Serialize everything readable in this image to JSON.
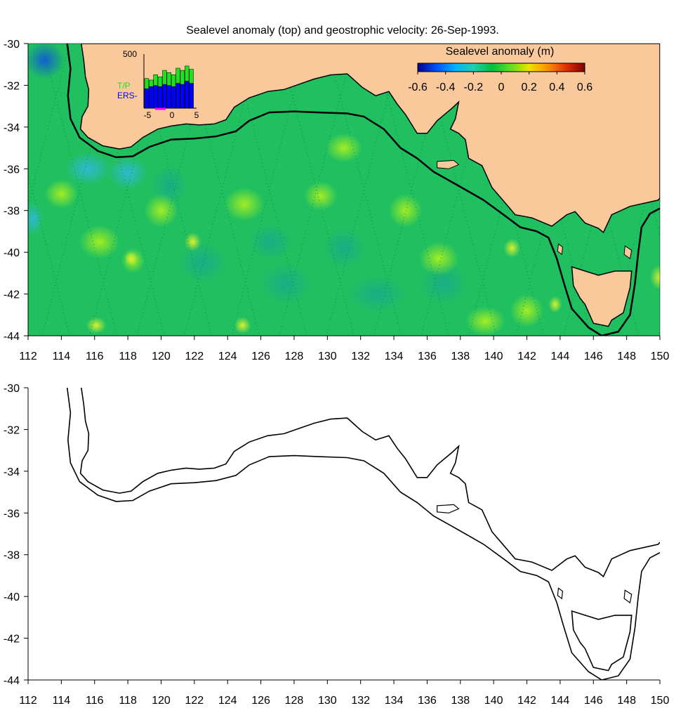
{
  "title": "Sealevel anomaly (top) and geostrophic velocity: 26-Sep-1993.",
  "x_axis": {
    "min": 112,
    "max": 150,
    "ticks": [
      112,
      114,
      116,
      118,
      120,
      122,
      124,
      126,
      128,
      130,
      132,
      134,
      136,
      138,
      140,
      142,
      144,
      146,
      148,
      150
    ]
  },
  "y_axis": {
    "min": -44,
    "max": -30,
    "ticks": [
      -30,
      -32,
      -34,
      -36,
      -38,
      -40,
      -42,
      -44
    ]
  },
  "colorbar": {
    "label": "Sealevel anomaly (m)",
    "ticks": [
      "-0.6",
      "-0.4",
      "-0.2",
      "0",
      "0.2",
      "0.4",
      "0.6"
    ],
    "range": [
      -0.6,
      0.6
    ],
    "colors": [
      "#00008f",
      "#0050ff",
      "#00b0ff",
      "#20d0b0",
      "#00c040",
      "#60e020",
      "#f0e000",
      "#ff9000",
      "#e03000",
      "#800000"
    ]
  },
  "inset": {
    "y_label": "500",
    "x_ticks": [
      "-5",
      "0",
      "5"
    ],
    "series_labels": [
      "T/P",
      "ERS-"
    ],
    "series_colors": [
      "#20e020",
      "#0000ff"
    ],
    "bars": [
      {
        "tp": 0.55,
        "ers": 0.36
      },
      {
        "tp": 0.52,
        "ers": 0.4
      },
      {
        "tp": 0.62,
        "ers": 0.42
      },
      {
        "tp": 0.58,
        "ers": 0.4
      },
      {
        "tp": 0.7,
        "ers": 0.44
      },
      {
        "tp": 0.66,
        "ers": 0.42
      },
      {
        "tp": 0.62,
        "ers": 0.4
      },
      {
        "tp": 0.74,
        "ers": 0.46
      },
      {
        "tp": 0.7,
        "ers": 0.44
      },
      {
        "tp": 0.78,
        "ers": 0.5
      },
      {
        "tp": 0.72,
        "ers": 0.46
      }
    ]
  },
  "colors": {
    "land": "#f9c99b",
    "ocean": "#20c060",
    "coast": "#000000"
  },
  "coast": [
    [
      115.2,
      -30
    ],
    [
      115.35,
      -30.8
    ],
    [
      115.45,
      -31.6
    ],
    [
      115.65,
      -32.2
    ],
    [
      115.6,
      -33.0
    ],
    [
      115.25,
      -33.5
    ],
    [
      115.15,
      -34.1
    ],
    [
      115.6,
      -34.5
    ],
    [
      116.5,
      -34.9
    ],
    [
      117.5,
      -35.05
    ],
    [
      118.2,
      -34.95
    ],
    [
      118.9,
      -34.5
    ],
    [
      119.8,
      -34.1
    ],
    [
      120.6,
      -33.95
    ],
    [
      121.5,
      -33.85
    ],
    [
      122.3,
      -33.9
    ],
    [
      123.2,
      -33.85
    ],
    [
      123.9,
      -33.65
    ],
    [
      124.4,
      -33.05
    ],
    [
      125.3,
      -32.6
    ],
    [
      126.4,
      -32.3
    ],
    [
      127.4,
      -32.2
    ],
    [
      128.3,
      -31.95
    ],
    [
      129.2,
      -31.7
    ],
    [
      130.2,
      -31.5
    ],
    [
      131.2,
      -31.45
    ],
    [
      132.1,
      -32.1
    ],
    [
      132.9,
      -32.5
    ],
    [
      133.7,
      -32.3
    ],
    [
      134.2,
      -32.9
    ],
    [
      134.7,
      -33.4
    ],
    [
      135.4,
      -34.3
    ],
    [
      136.0,
      -34.3
    ],
    [
      136.6,
      -33.7
    ],
    [
      137.5,
      -33.1
    ],
    [
      137.9,
      -32.8
    ],
    [
      137.7,
      -33.6
    ],
    [
      137.4,
      -34.1
    ],
    [
      137.9,
      -34.3
    ],
    [
      138.3,
      -34.6
    ],
    [
      138.5,
      -35.5
    ],
    [
      139.3,
      -35.85
    ],
    [
      139.9,
      -36.9
    ],
    [
      140.6,
      -37.55
    ],
    [
      141.3,
      -38.2
    ],
    [
      142.3,
      -38.35
    ],
    [
      143.5,
      -38.75
    ],
    [
      144.4,
      -38.2
    ],
    [
      144.9,
      -38.05
    ],
    [
      145.5,
      -38.6
    ],
    [
      146.3,
      -38.85
    ],
    [
      146.6,
      -39.05
    ],
    [
      147.1,
      -38.2
    ],
    [
      148.2,
      -37.8
    ],
    [
      149.9,
      -37.5
    ],
    [
      150,
      -37.4
    ]
  ],
  "tasmania": [
    [
      144.7,
      -40.7
    ],
    [
      145.3,
      -40.85
    ],
    [
      146.3,
      -41.1
    ],
    [
      147.3,
      -40.9
    ],
    [
      148.3,
      -40.9
    ],
    [
      148.2,
      -41.7
    ],
    [
      148.0,
      -42.3
    ],
    [
      147.8,
      -42.9
    ],
    [
      147.1,
      -43.25
    ],
    [
      146.9,
      -43.55
    ],
    [
      146.0,
      -43.4
    ],
    [
      145.5,
      -42.5
    ],
    [
      145.2,
      -42.2
    ],
    [
      144.8,
      -41.6
    ],
    [
      144.7,
      -40.7
    ]
  ],
  "king_island": [
    [
      143.9,
      -39.6
    ],
    [
      144.15,
      -39.75
    ],
    [
      144.1,
      -40.1
    ],
    [
      143.85,
      -39.95
    ],
    [
      143.9,
      -39.6
    ]
  ],
  "flinders_island": [
    [
      147.9,
      -39.7
    ],
    [
      148.3,
      -39.9
    ],
    [
      148.2,
      -40.3
    ],
    [
      147.85,
      -40.1
    ],
    [
      147.9,
      -39.7
    ]
  ],
  "kangaroo_island": [
    [
      136.6,
      -35.65
    ],
    [
      137.6,
      -35.6
    ],
    [
      137.9,
      -35.8
    ],
    [
      137.3,
      -36.0
    ],
    [
      136.6,
      -35.95
    ],
    [
      136.6,
      -35.65
    ]
  ],
  "shelf_edge": [
    [
      114.35,
      -30
    ],
    [
      114.55,
      -31.2
    ],
    [
      114.4,
      -32.5
    ],
    [
      114.55,
      -33.6
    ],
    [
      115.1,
      -34.5
    ],
    [
      116.2,
      -35.15
    ],
    [
      117.3,
      -35.45
    ],
    [
      118.3,
      -35.4
    ],
    [
      119.3,
      -34.95
    ],
    [
      120.6,
      -34.6
    ],
    [
      122.0,
      -34.55
    ],
    [
      123.3,
      -34.45
    ],
    [
      124.5,
      -34.2
    ],
    [
      125.3,
      -33.7
    ],
    [
      126.5,
      -33.3
    ],
    [
      128.0,
      -33.25
    ],
    [
      129.5,
      -33.3
    ],
    [
      131.2,
      -33.35
    ],
    [
      132.2,
      -33.5
    ],
    [
      133.4,
      -34.1
    ],
    [
      134.4,
      -35.0
    ],
    [
      135.4,
      -35.5
    ],
    [
      136.4,
      -36.15
    ],
    [
      137.3,
      -36.55
    ],
    [
      138.3,
      -37.0
    ],
    [
      139.4,
      -37.5
    ],
    [
      140.6,
      -38.2
    ],
    [
      141.6,
      -38.8
    ],
    [
      142.6,
      -39.0
    ],
    [
      143.3,
      -39.3
    ],
    [
      143.8,
      -40.3
    ],
    [
      144.2,
      -41.4
    ],
    [
      144.7,
      -42.7
    ],
    [
      145.7,
      -43.6
    ],
    [
      146.5,
      -44.0
    ],
    [
      147.5,
      -43.8
    ],
    [
      148.2,
      -43.0
    ],
    [
      148.5,
      -41.5
    ],
    [
      148.7,
      -40.0
    ],
    [
      148.9,
      -38.8
    ],
    [
      149.4,
      -38.15
    ],
    [
      150,
      -37.9
    ]
  ]
}
